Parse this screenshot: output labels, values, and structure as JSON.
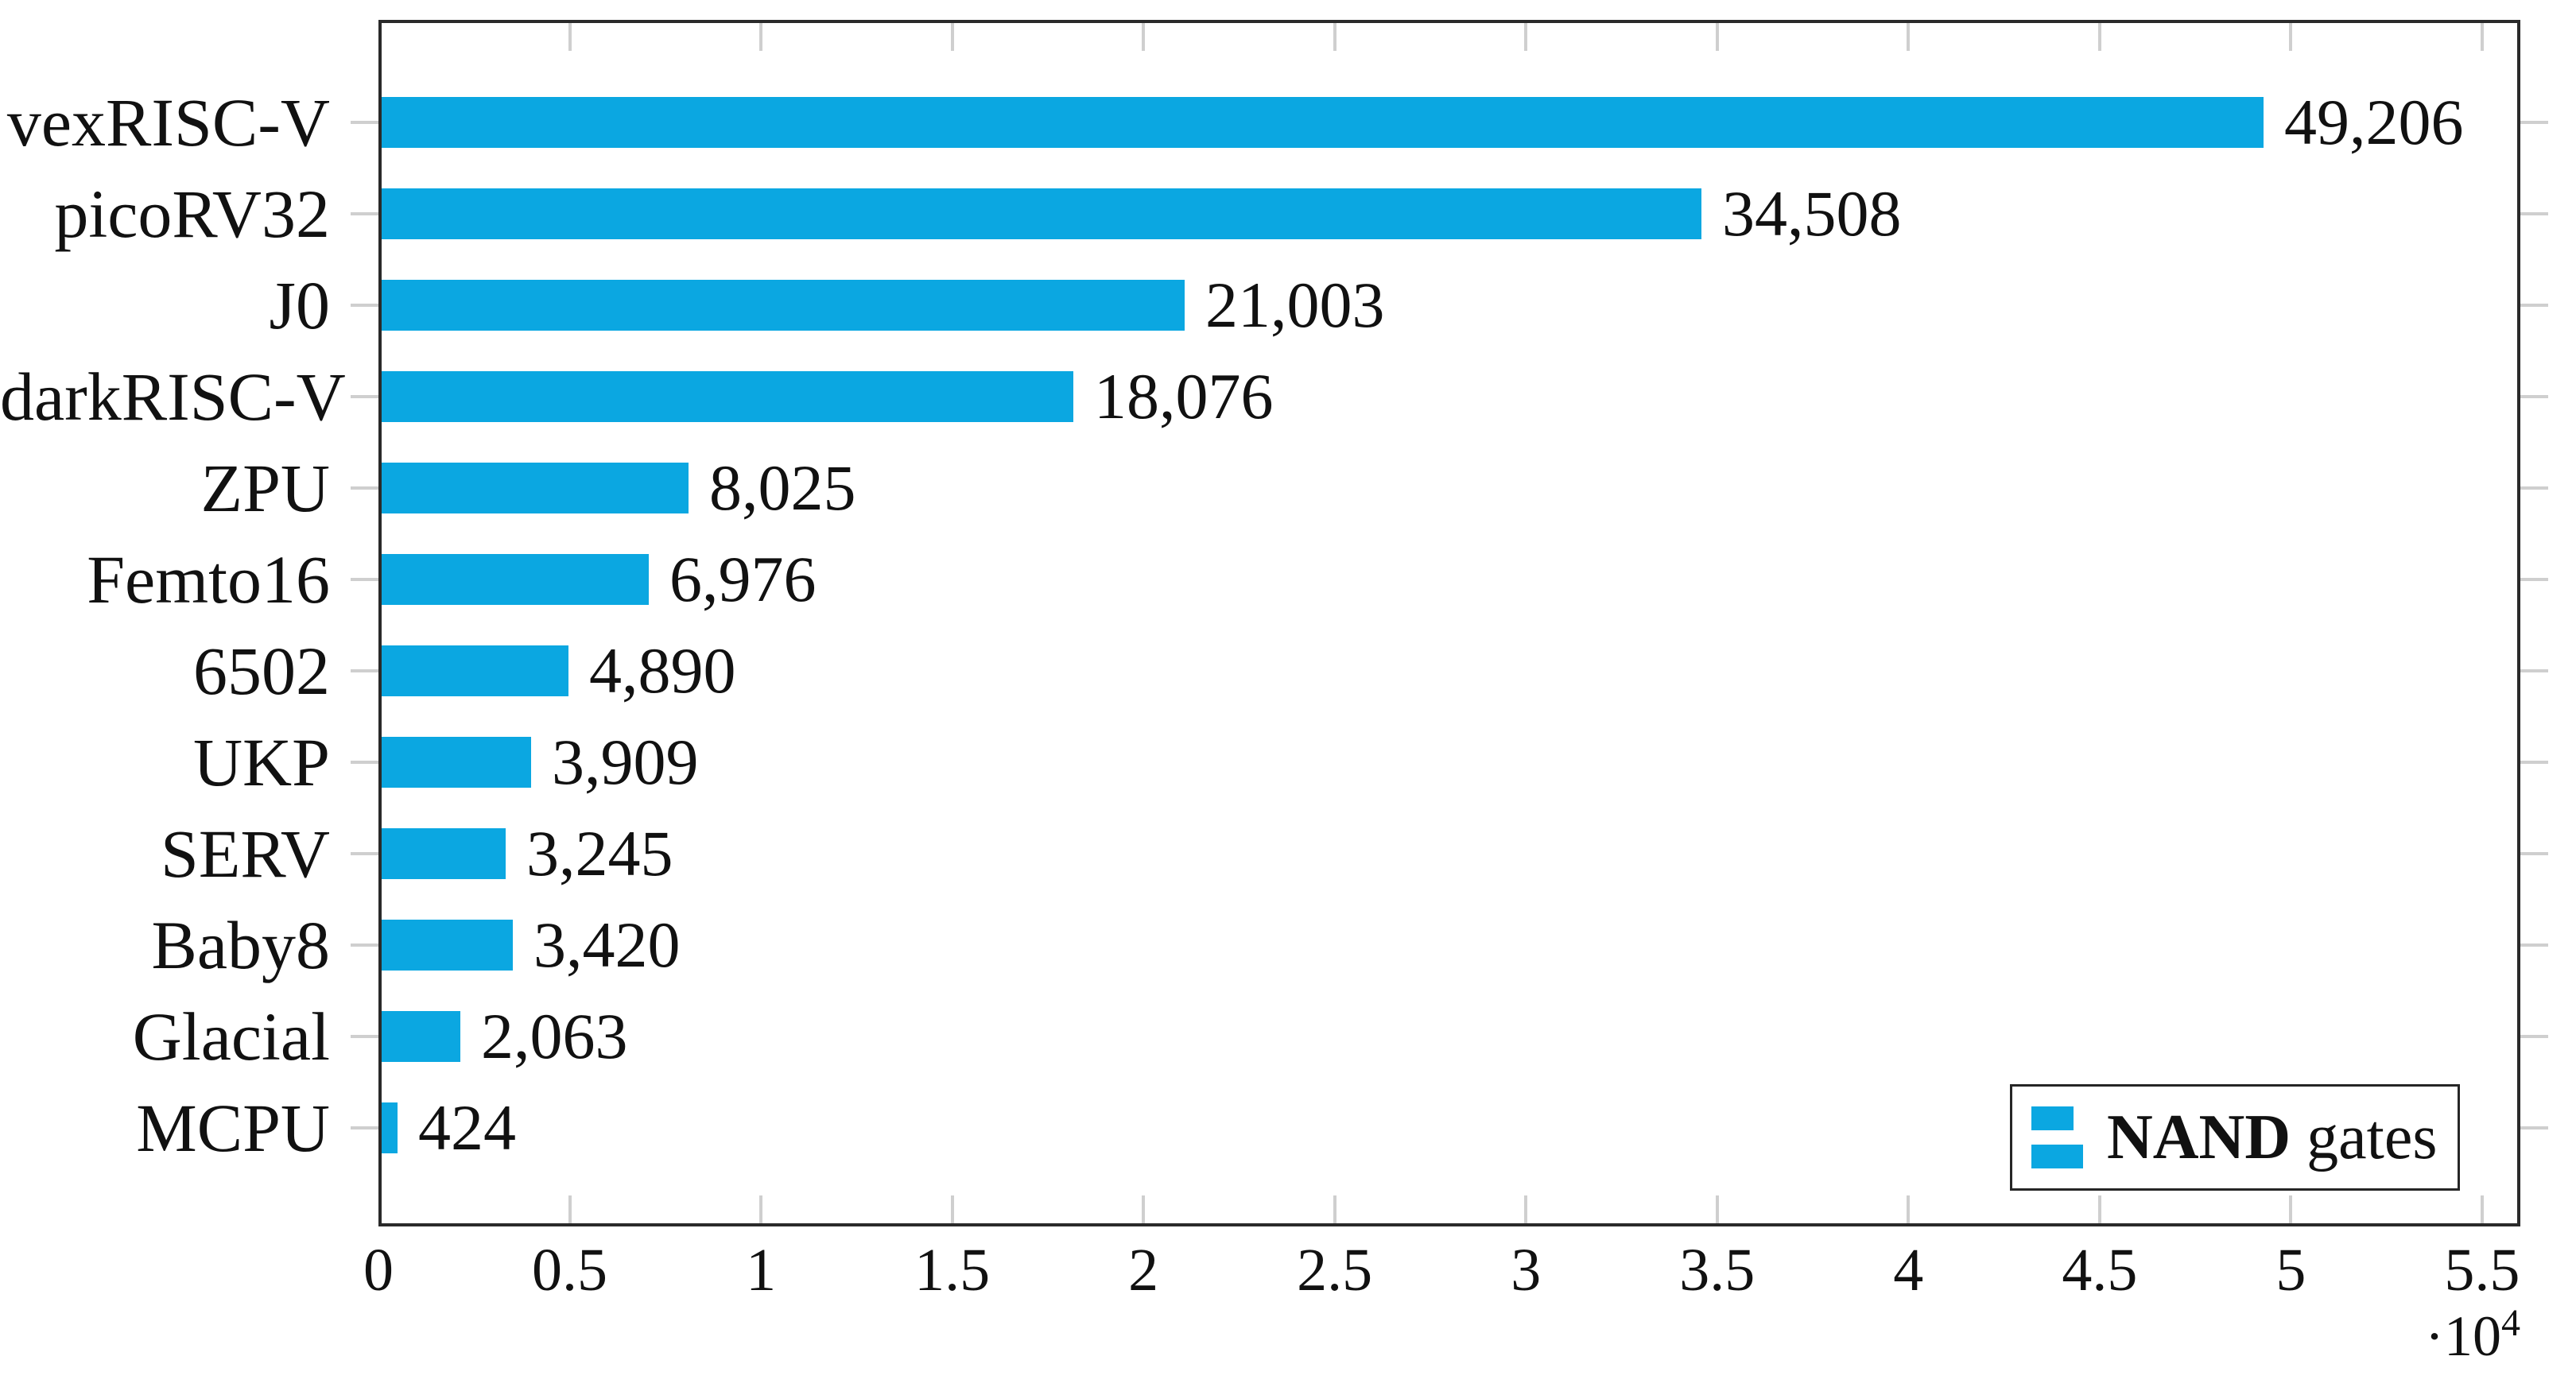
{
  "chart_data": {
    "type": "bar",
    "orientation": "horizontal",
    "title": "",
    "categories": [
      "vexRISC-V",
      "picoRV32",
      "J0",
      "darkRISC-V",
      "ZPU",
      "Femto16",
      "6502",
      "UKP",
      "SERV",
      "Baby8",
      "Glacial",
      "MCPU"
    ],
    "values": [
      49206,
      34508,
      21003,
      18076,
      8025,
      6976,
      4890,
      3909,
      3245,
      3420,
      2063,
      424
    ],
    "value_labels": [
      "49,206",
      "34,508",
      "21,003",
      "18,076",
      "8,025",
      "6,976",
      "4,890",
      "3,909",
      "3,245",
      "3,420",
      "2,063",
      "424"
    ],
    "x_axis": {
      "tick_values": [
        0,
        5000,
        10000,
        15000,
        20000,
        25000,
        30000,
        35000,
        40000,
        45000,
        50000,
        55000
      ],
      "tick_labels": [
        "0",
        "0.5",
        "1",
        "1.5",
        "2",
        "2.5",
        "3",
        "3.5",
        "4",
        "4.5",
        "5",
        "5.5"
      ],
      "multiplier_base": "·10",
      "multiplier_exponent": "4",
      "range_shown": [
        0,
        56000
      ]
    },
    "legend": {
      "bold_text": "NAND",
      "regular_text": " gates"
    },
    "colors": {
      "bar": "#0ba7e1",
      "axis": "#2a2a2a",
      "tick": "#cfcfcf",
      "text": "#111111"
    },
    "grid": "off",
    "legend_position": "bottom-right"
  }
}
